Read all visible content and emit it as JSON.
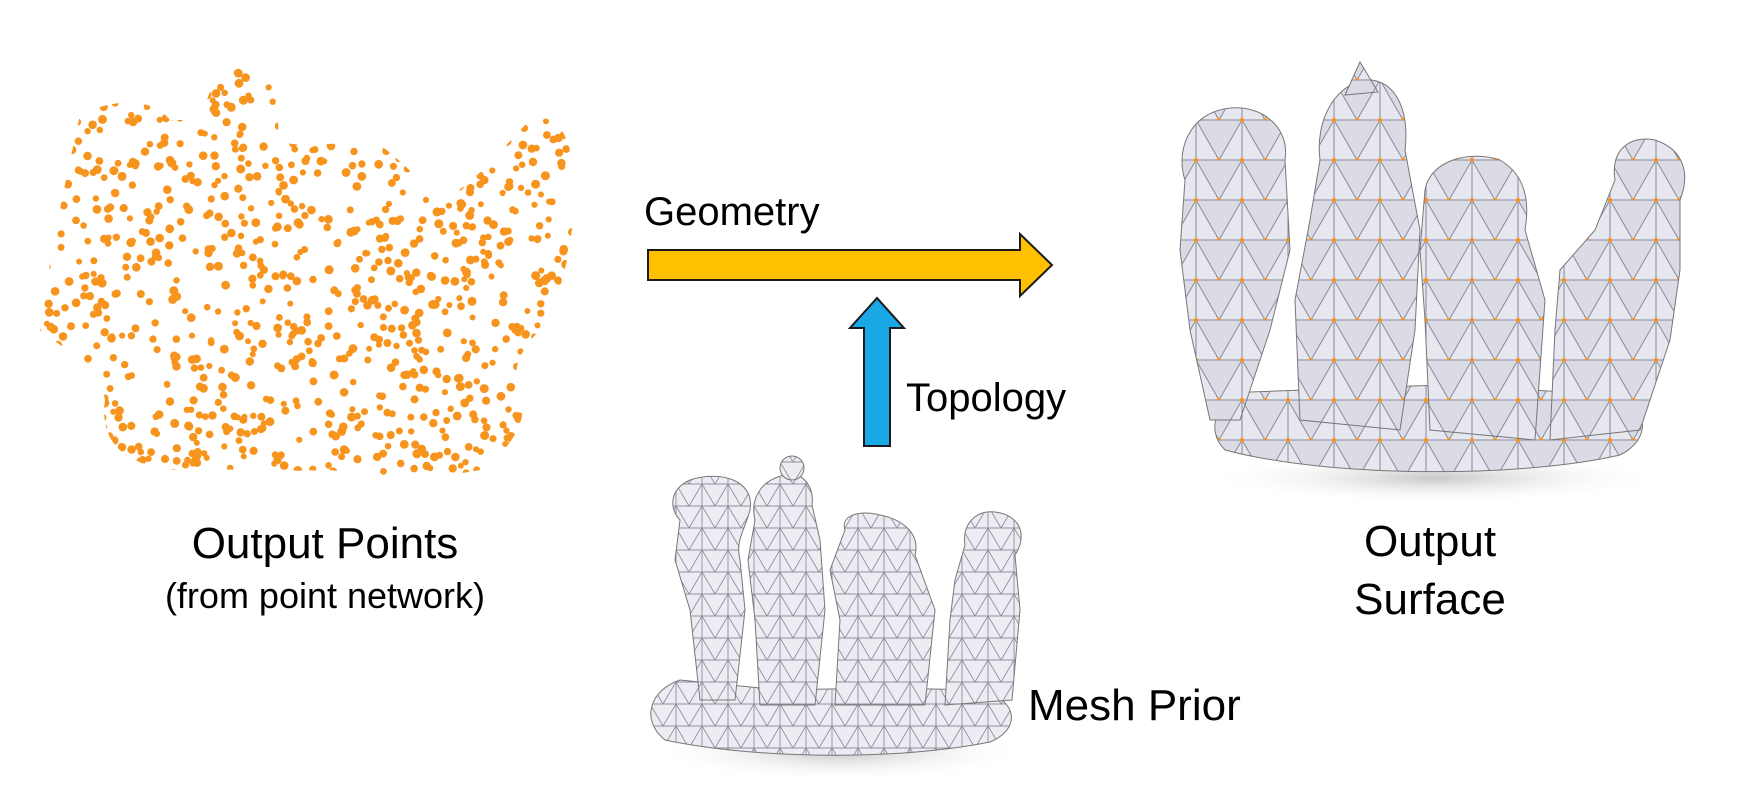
{
  "labels": {
    "output_points": "Output Points",
    "output_points_sub": "(from point network)",
    "output_surface_line1": "Output",
    "output_surface_line2": "Surface",
    "geometry": "Geometry",
    "topology": "Topology",
    "mesh_prior": "Mesh Prior"
  },
  "colors": {
    "points": "#F7941D",
    "geometry_arrow": "#FFC000",
    "topology_arrow": "#1AA7E6",
    "mesh_face": "#E9EAF2",
    "mesh_edge": "#9A9AAA",
    "surface_vertex": "#F7941D"
  }
}
